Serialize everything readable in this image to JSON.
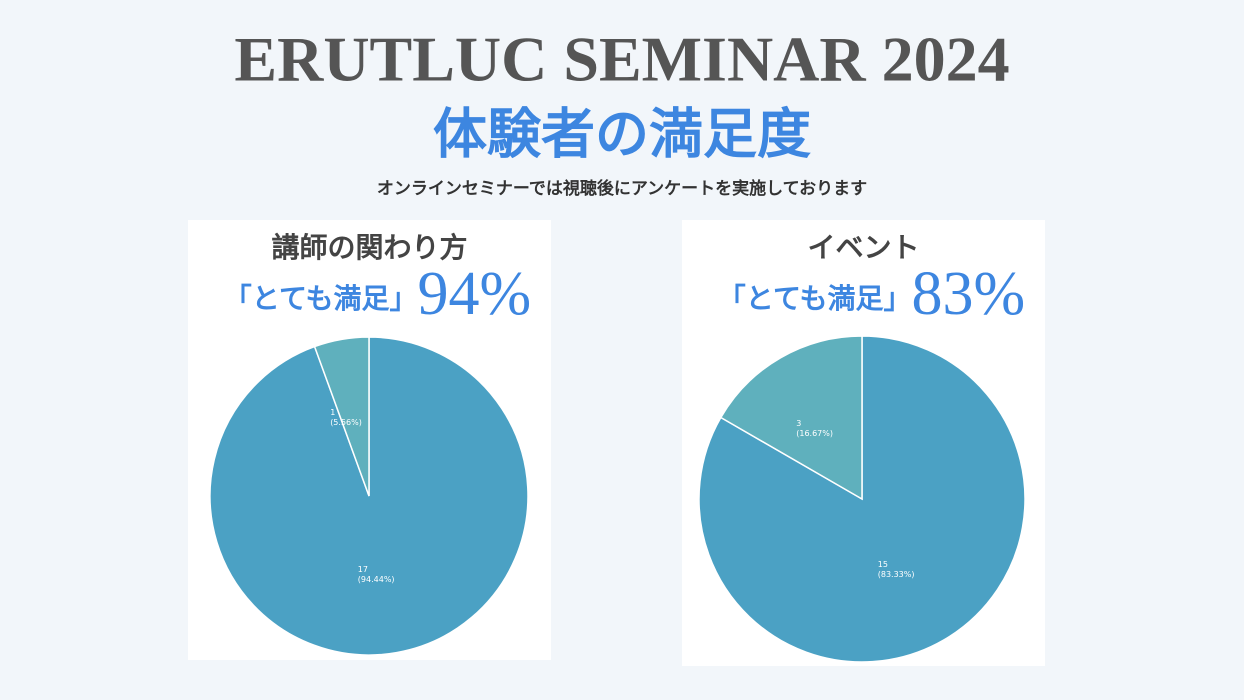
{
  "header": {
    "title": "ERUTLUC SEMINAR 2024",
    "subtitle": "体験者の満足度",
    "note": "オンラインセミナーでは視聴後にアンケートを実施しております"
  },
  "chart_data": [
    {
      "type": "pie",
      "title": "講師の関わり方",
      "headline": "「とても満足」",
      "headline_value": "94%",
      "values": [
        17,
        1
      ],
      "value_labels": [
        [
          "17",
          "(94.44%)"
        ],
        [
          "1",
          "(5.56%)"
        ]
      ],
      "colors": [
        "#4ba1c4",
        "#5fb0bd"
      ]
    },
    {
      "type": "pie",
      "title": "イベント",
      "headline": "「とても満足」",
      "headline_value": "83%",
      "values": [
        15,
        3
      ],
      "value_labels": [
        [
          "15",
          "(83.33%)"
        ],
        [
          "3",
          "(16.67%)"
        ]
      ],
      "colors": [
        "#4ba1c4",
        "#5fb0bd"
      ]
    }
  ]
}
